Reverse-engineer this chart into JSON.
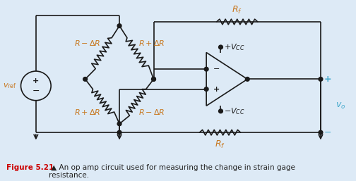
{
  "bg_color": "#ddeaf6",
  "line_color": "#1a1a1a",
  "label_color": "#c87820",
  "caption_bold_color": "#cc0000",
  "caption_text_color": "#222222",
  "vcc_color": "#1a1a1a",
  "vo_color": "#44aacc",
  "caption_bold": "Figure 5.21",
  "caption_rest": " ▲ An op amp circuit used for measuring the change in strain gage\nresistance."
}
